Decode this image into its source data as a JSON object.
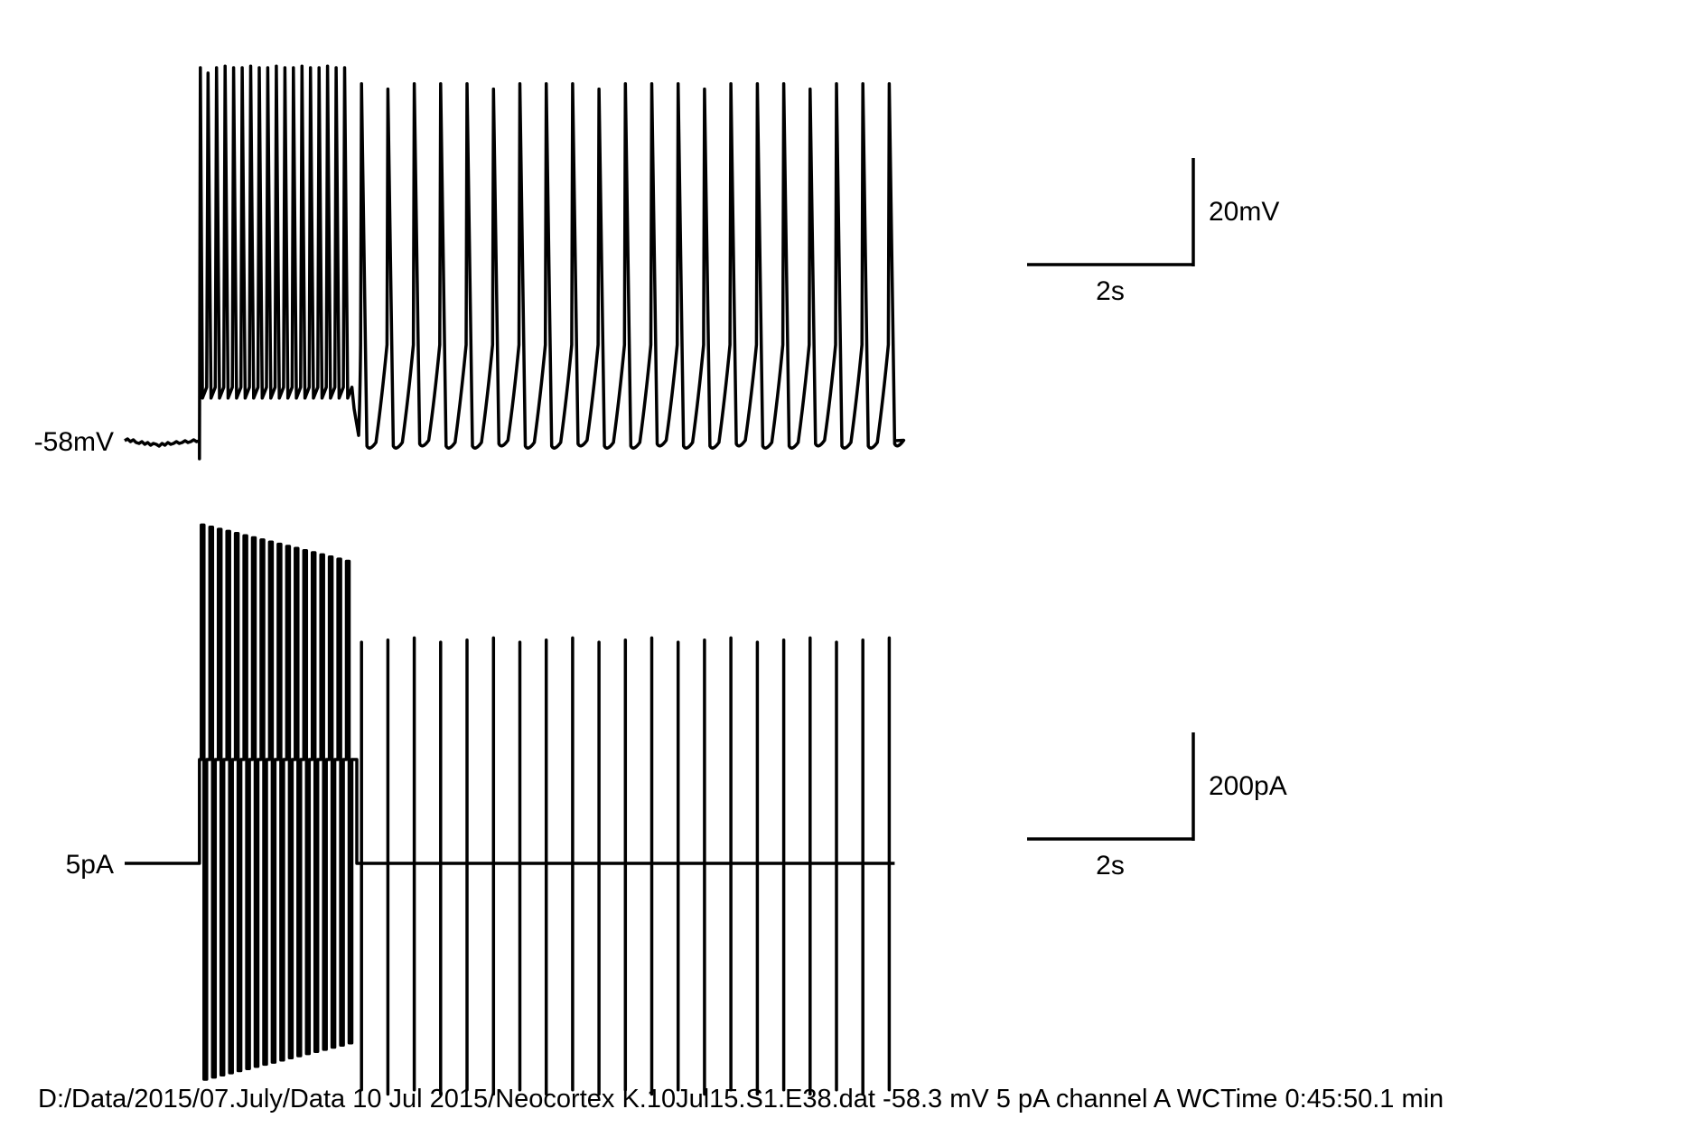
{
  "chart_data": [
    {
      "type": "line",
      "panel": "voltage",
      "baseline_label": "-58mV",
      "baseline_value_mV": -58,
      "scale_bar": {
        "y_label": "20mV",
        "y_value": 20,
        "x_label": "2s",
        "x_value": 2
      },
      "segments": [
        {
          "phase": "pre-stimulus",
          "t_start_s": 0.0,
          "t_end_s": 0.9,
          "level_mV": -58
        },
        {
          "phase": "high-frequency",
          "t_start_s": 0.9,
          "t_end_s": 2.75,
          "n_spikes": 18,
          "trough_mV": -50,
          "spike_peak_mV": 12
        },
        {
          "phase": "low-frequency",
          "t_start_s": 2.85,
          "t_end_s": 9.2,
          "n_spikes": 21,
          "trough_mV": -59,
          "spike_peak_mV": 9
        }
      ]
    },
    {
      "type": "line",
      "panel": "current",
      "baseline_label": "5pA",
      "baseline_value_pA": 5,
      "scale_bar": {
        "y_label": "200pA",
        "y_value": 200,
        "x_label": "2s",
        "x_value": 2
      },
      "segments": [
        {
          "phase": "pre-stimulus",
          "t_start_s": 0.0,
          "t_end_s": 0.9,
          "level_pA": 5
        },
        {
          "phase": "step",
          "t_start_s": 0.9,
          "t_end_s": 2.75,
          "step_level_pA": 200,
          "n_pulses": 18,
          "pulse_peak_pA": 640,
          "pulse_trough_pA": -400
        },
        {
          "phase": "pulse-train",
          "t_start_s": 2.85,
          "t_end_s": 9.2,
          "level_pA": 5,
          "n_pulses": 21,
          "pulse_peak_pA": 420,
          "pulse_trough_pA": -420
        }
      ]
    }
  ],
  "footer": "D:/Data/2015/07.July/Data 10 Jul 2015/Neocortex K.10Jul15.S1.E38.dat -58.3 mV 5 pA channel A WCTime 0:45:50.1 min"
}
